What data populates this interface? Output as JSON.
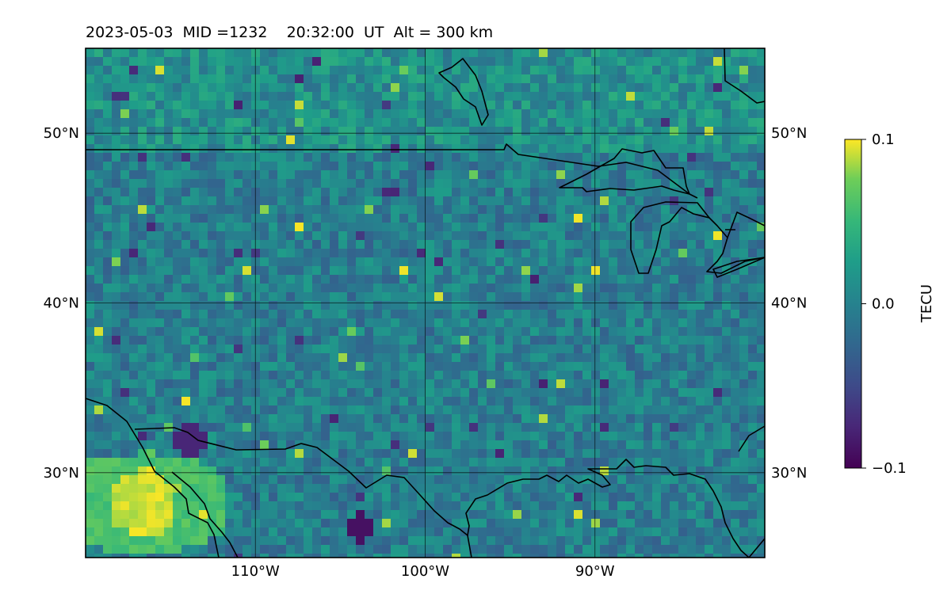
{
  "header": {
    "title": "2023-05-03  MID =1232    20:32:00  UT  Alt = 300 km"
  },
  "map": {
    "lon_range": [
      -120,
      -80
    ],
    "lat_range": [
      25,
      55
    ],
    "grid_lons": [
      -110,
      -100,
      -90
    ],
    "grid_lats": [
      30,
      40,
      50
    ],
    "lon_labels": [
      "110°W",
      "100°W",
      "90°W"
    ],
    "lat_labels": [
      "30°N",
      "40°N",
      "50°N"
    ]
  },
  "colorbar": {
    "label": "TECU",
    "ticks": [
      "0.1",
      "0.0",
      "−0.1"
    ],
    "tick_values": [
      0.1,
      0.0,
      -0.1
    ],
    "range": [
      -0.1,
      0.1
    ],
    "colormap": "viridis"
  },
  "colors": {
    "frame": "#000000",
    "grid": "#000000",
    "coast": "#000000",
    "background_field": "#2a8c8a"
  }
}
